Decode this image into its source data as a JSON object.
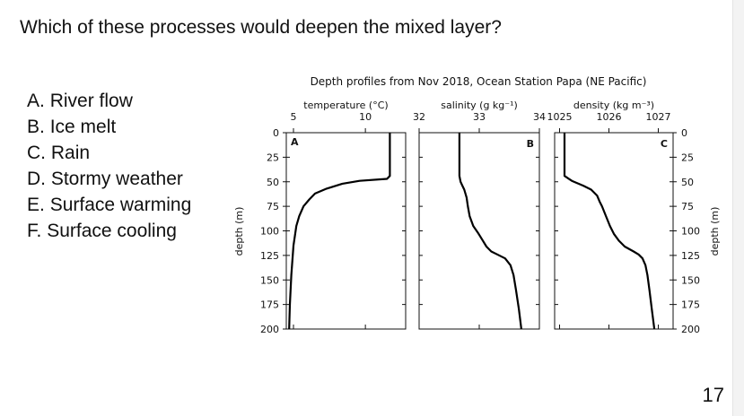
{
  "question": "Which of these processes would deepen the mixed layer?",
  "options": [
    {
      "letter": "A.",
      "text": "River flow"
    },
    {
      "letter": "B.",
      "text": "Ice melt"
    },
    {
      "letter": "C.",
      "text": "Rain"
    },
    {
      "letter": "D.",
      "text": "Stormy weather"
    },
    {
      "letter": "E.",
      "text": "Surface warming"
    },
    {
      "letter": "F.",
      "text": "Surface cooling"
    }
  ],
  "slide_number": "17",
  "chart_data": {
    "type": "line",
    "title": "Depth profiles from Nov 2018, Ocean Station Papa (NE Pacific)",
    "y_axis": {
      "label": "depth (m)",
      "ylim": [
        0,
        200
      ],
      "inverted": true,
      "ticks": [
        0,
        25,
        50,
        75,
        100,
        125,
        150,
        175,
        200
      ]
    },
    "panels": [
      {
        "id": "A",
        "xlabel": "temperature (°C)",
        "xlim": [
          4.5,
          12.8
        ],
        "x_ticks": [
          5,
          10
        ],
        "x_tick_labels": [
          "5",
          "10"
        ],
        "series": {
          "depth": [
            0,
            15,
            30,
            44,
            47,
            49,
            52,
            57,
            62,
            68,
            75,
            85,
            95,
            105,
            115,
            125,
            135,
            145,
            160,
            175,
            190,
            200
          ],
          "values": [
            11.7,
            11.7,
            11.7,
            11.7,
            11.5,
            9.6,
            8.4,
            7.3,
            6.5,
            6.1,
            5.7,
            5.4,
            5.2,
            5.1,
            5.0,
            4.95,
            4.9,
            4.85,
            4.8,
            4.75,
            4.72,
            4.7
          ]
        }
      },
      {
        "id": "B",
        "xlabel": "salinity (g kg⁻¹)",
        "xlim": [
          32.0,
          34.0
        ],
        "x_ticks": [
          32,
          33,
          34
        ],
        "x_tick_labels": [
          "32",
          "33",
          "34"
        ],
        "series": {
          "depth": [
            0,
            20,
            44,
            50,
            54,
            58,
            66,
            75,
            85,
            95,
            103,
            110,
            116,
            121,
            124,
            128,
            135,
            145,
            160,
            180,
            200
          ],
          "values": [
            32.67,
            32.67,
            32.67,
            32.69,
            32.72,
            32.75,
            32.79,
            32.81,
            32.84,
            32.9,
            32.99,
            33.06,
            33.12,
            33.2,
            33.3,
            33.43,
            33.52,
            33.57,
            33.61,
            33.66,
            33.7
          ]
        }
      },
      {
        "id": "C",
        "xlabel": "density (kg m⁻³)",
        "xlim": [
          1024.9,
          1027.3
        ],
        "x_ticks": [
          1025,
          1026,
          1027
        ],
        "x_tick_labels": [
          "1025",
          "1026",
          "1027"
        ],
        "series": {
          "depth": [
            0,
            20,
            44,
            49,
            54,
            58,
            64,
            70,
            75,
            85,
            95,
            103,
            110,
            116,
            121,
            124,
            128,
            135,
            145,
            160,
            180,
            200
          ],
          "values": [
            1025.1,
            1025.1,
            1025.1,
            1025.25,
            1025.48,
            1025.64,
            1025.76,
            1025.81,
            1025.86,
            1025.94,
            1026.02,
            1026.1,
            1026.2,
            1026.32,
            1026.5,
            1026.6,
            1026.68,
            1026.74,
            1026.78,
            1026.82,
            1026.87,
            1026.92
          ]
        }
      }
    ]
  }
}
